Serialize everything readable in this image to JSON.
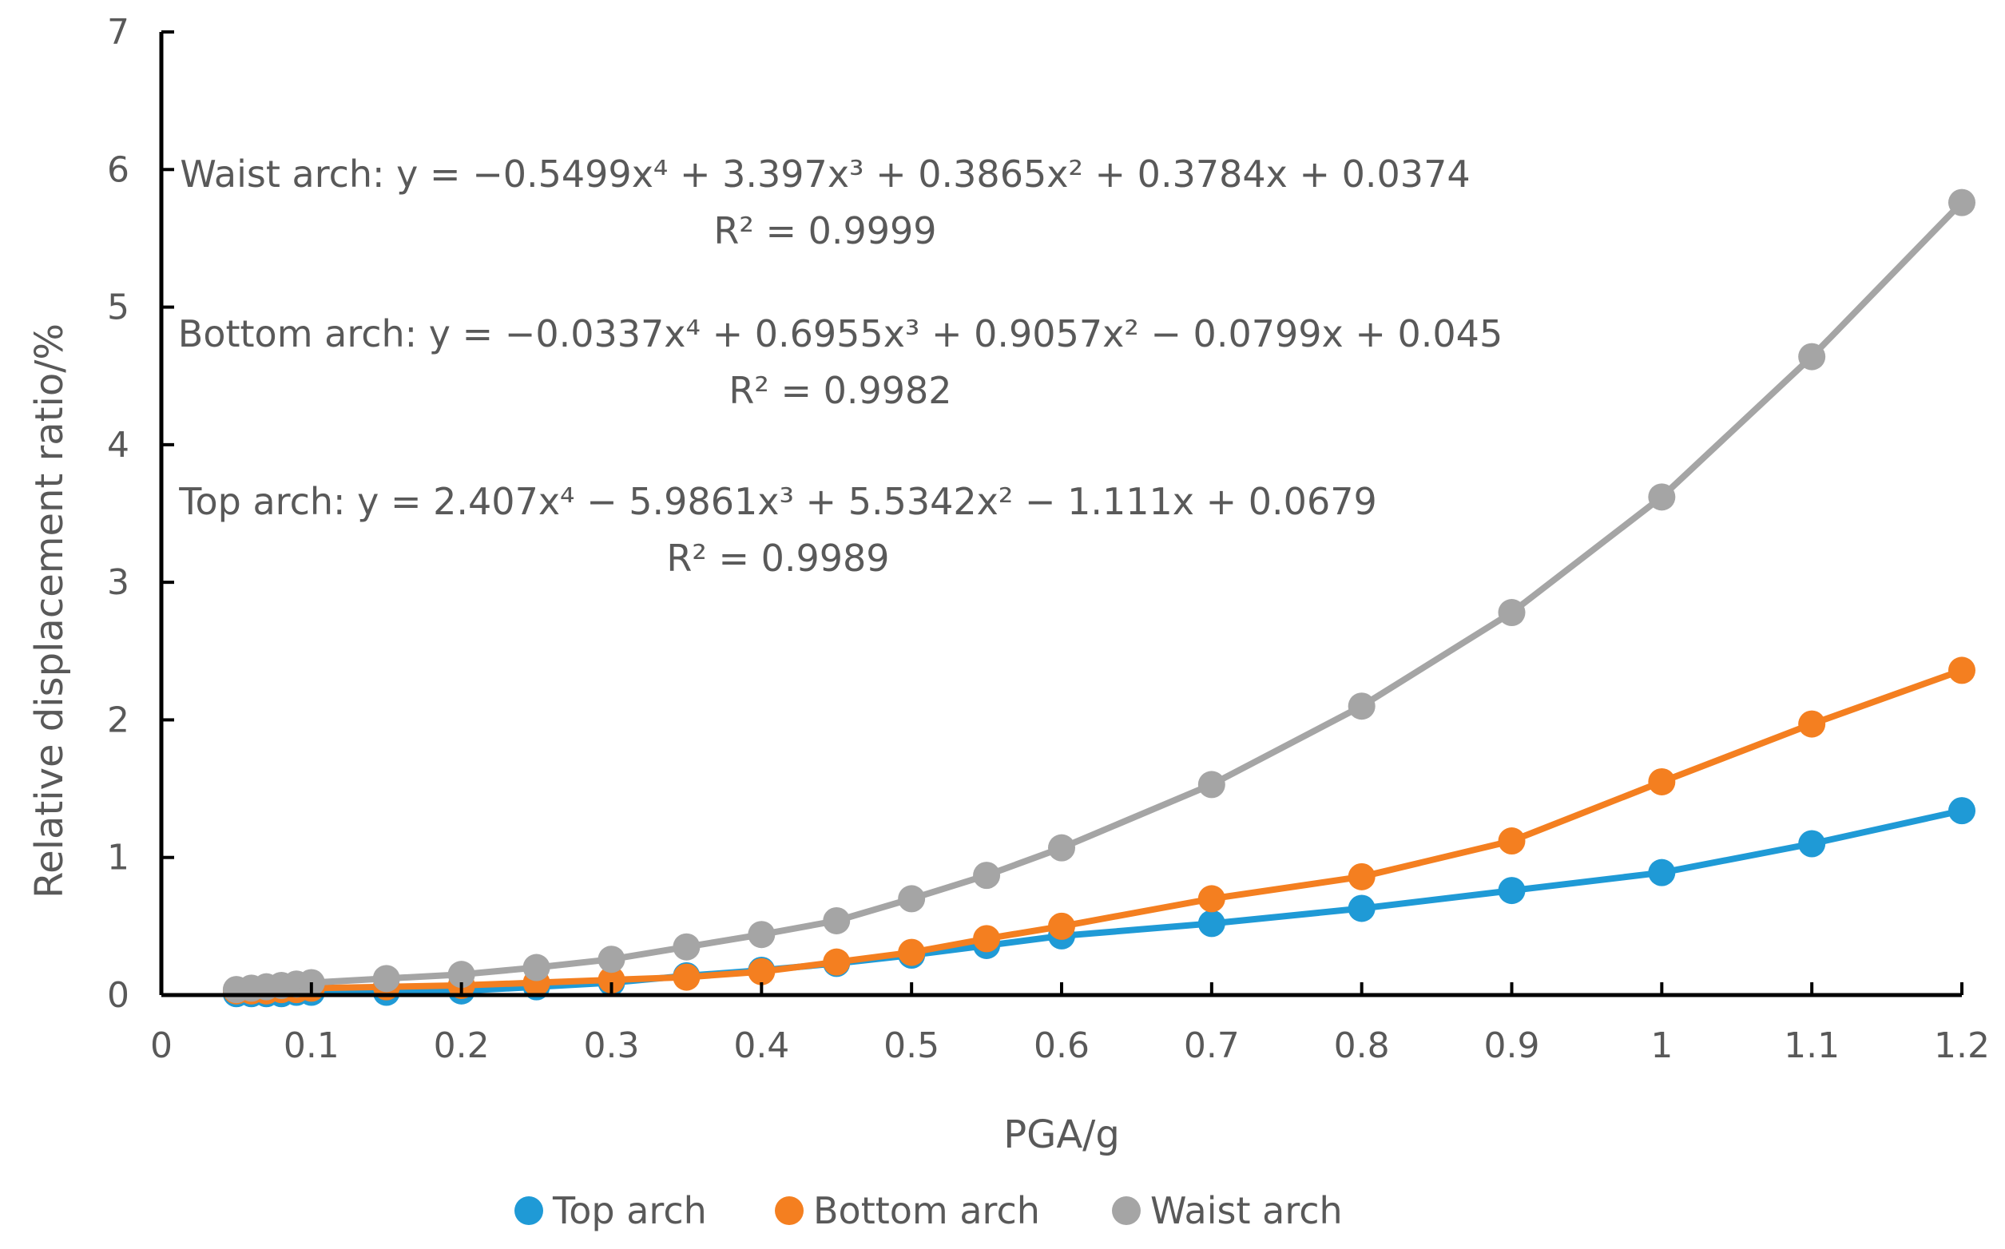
{
  "chart_data": {
    "type": "line",
    "xlabel": "PGA/g",
    "ylabel": "Relative displacement ratio/%",
    "xlim": [
      0,
      1.2
    ],
    "ylim": [
      0,
      7
    ],
    "x_ticks": [
      0,
      0.1,
      0.2,
      0.3,
      0.4,
      0.5,
      0.6,
      0.7,
      0.8,
      0.9,
      1,
      1.1,
      1.2
    ],
    "x_tick_labels": [
      "0",
      "0.1",
      "0.2",
      "0.3",
      "0.4",
      "0.5",
      "0.6",
      "0.7",
      "0.8",
      "0.9",
      "1",
      "1.1",
      "1.2"
    ],
    "y_ticks": [
      0,
      1,
      2,
      3,
      4,
      5,
      6,
      7
    ],
    "y_tick_labels": [
      "0",
      "1",
      "2",
      "3",
      "4",
      "5",
      "6",
      "7"
    ],
    "grid": false,
    "legend_position": "bottom",
    "series": [
      {
        "name": "Top arch",
        "color": "#1f9ad6",
        "x": [
          0.05,
          0.06,
          0.07,
          0.08,
          0.09,
          0.1,
          0.15,
          0.2,
          0.25,
          0.3,
          0.35,
          0.4,
          0.45,
          0.5,
          0.55,
          0.6,
          0.7,
          0.8,
          0.9,
          1.0,
          1.1,
          1.2
        ],
        "y": [
          0.01,
          0.01,
          0.01,
          0.01,
          0.02,
          0.02,
          0.02,
          0.03,
          0.06,
          0.09,
          0.14,
          0.18,
          0.23,
          0.29,
          0.36,
          0.43,
          0.52,
          0.63,
          0.76,
          0.89,
          1.1,
          1.34
        ],
        "equation_label": "Top arch: y = 2.407x⁴ − 5.9861x³ + 5.5342x² − 1.111x + 0.0679",
        "r2_label": "R² = 0.9989"
      },
      {
        "name": "Bottom arch",
        "color": "#f47f20",
        "x": [
          0.05,
          0.06,
          0.07,
          0.08,
          0.09,
          0.1,
          0.15,
          0.2,
          0.25,
          0.3,
          0.35,
          0.4,
          0.45,
          0.5,
          0.55,
          0.6,
          0.7,
          0.8,
          0.9,
          1.0,
          1.1,
          1.2
        ],
        "y": [
          0.03,
          0.03,
          0.03,
          0.04,
          0.04,
          0.05,
          0.06,
          0.07,
          0.09,
          0.11,
          0.13,
          0.17,
          0.24,
          0.31,
          0.41,
          0.5,
          0.7,
          0.86,
          1.12,
          1.55,
          1.97,
          2.36
        ],
        "equation_label": "Bottom arch: y = −0.0337x⁴ + 0.6955x³ + 0.9057x² − 0.0799x + 0.045",
        "r2_label": "R² = 0.9982"
      },
      {
        "name": "Waist arch",
        "color": "#a5a5a5",
        "x": [
          0.05,
          0.06,
          0.07,
          0.08,
          0.09,
          0.1,
          0.15,
          0.2,
          0.25,
          0.3,
          0.35,
          0.4,
          0.45,
          0.5,
          0.55,
          0.6,
          0.7,
          0.8,
          0.9,
          1.0,
          1.1,
          1.2
        ],
        "y": [
          0.04,
          0.05,
          0.06,
          0.07,
          0.08,
          0.09,
          0.12,
          0.15,
          0.2,
          0.26,
          0.35,
          0.44,
          0.54,
          0.7,
          0.87,
          1.07,
          1.53,
          2.1,
          2.78,
          3.62,
          4.64,
          5.76
        ],
        "equation_label": "Waist arch: y = −0.5499x⁴ + 3.397x³ + 0.3865x² + 0.3784x + 0.0374",
        "r2_label": "R² = 0.9999"
      }
    ]
  }
}
